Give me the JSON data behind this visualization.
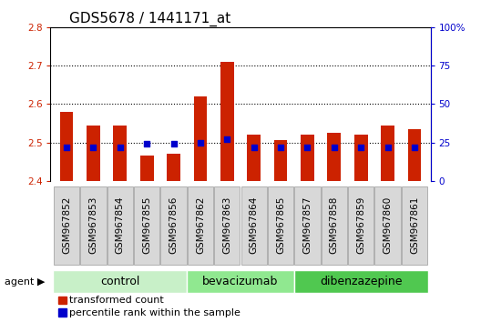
{
  "title": "GDS5678 / 1441171_at",
  "samples": [
    "GSM967852",
    "GSM967853",
    "GSM967854",
    "GSM967855",
    "GSM967856",
    "GSM967862",
    "GSM967863",
    "GSM967864",
    "GSM967865",
    "GSM967857",
    "GSM967858",
    "GSM967859",
    "GSM967860",
    "GSM967861"
  ],
  "transformed_counts": [
    2.58,
    2.545,
    2.545,
    2.465,
    2.47,
    2.62,
    2.71,
    2.52,
    2.505,
    2.52,
    2.525,
    2.52,
    2.545,
    2.535
  ],
  "percentile_ranks": [
    22,
    22,
    22,
    24,
    24,
    25,
    27,
    22,
    22,
    22,
    22,
    22,
    22,
    22
  ],
  "groups": [
    {
      "label": "control",
      "start": 0,
      "end": 5,
      "color": "#c8f0c8"
    },
    {
      "label": "bevacizumab",
      "start": 5,
      "end": 9,
      "color": "#90e890"
    },
    {
      "label": "dibenzazepine",
      "start": 9,
      "end": 14,
      "color": "#50c850"
    }
  ],
  "ylim_left": [
    2.4,
    2.8
  ],
  "ylim_right": [
    0,
    100
  ],
  "yticks_left": [
    2.4,
    2.5,
    2.6,
    2.7,
    2.8
  ],
  "yticks_right": [
    0,
    25,
    50,
    75,
    100
  ],
  "bar_color": "#cc2200",
  "dot_color": "#0000cc",
  "bar_width": 0.5,
  "bg_color": "#ffffff",
  "label_bg_color": "#d8d8d8",
  "label_border_color": "#999999",
  "legend_items": [
    {
      "label": "transformed count",
      "color": "#cc2200"
    },
    {
      "label": "percentile rank within the sample",
      "color": "#0000cc"
    }
  ],
  "title_fontsize": 11,
  "tick_fontsize": 7.5,
  "group_fontsize": 9,
  "legend_fontsize": 8
}
